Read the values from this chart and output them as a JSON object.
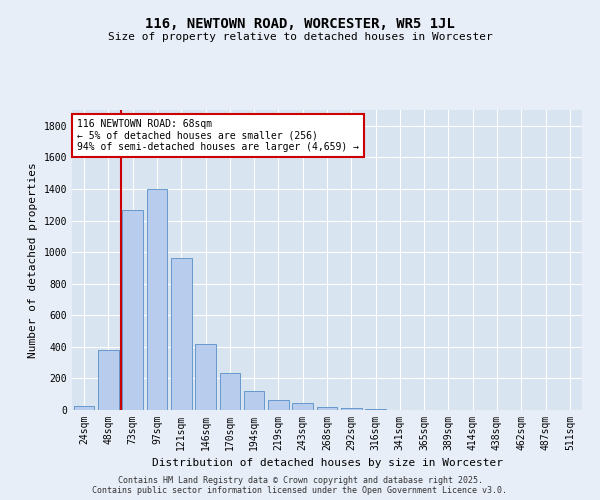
{
  "title": "116, NEWTOWN ROAD, WORCESTER, WR5 1JL",
  "subtitle": "Size of property relative to detached houses in Worcester",
  "xlabel": "Distribution of detached houses by size in Worcester",
  "ylabel": "Number of detached properties",
  "categories": [
    "24sqm",
    "48sqm",
    "73sqm",
    "97sqm",
    "121sqm",
    "146sqm",
    "170sqm",
    "194sqm",
    "219sqm",
    "243sqm",
    "268sqm",
    "292sqm",
    "316sqm",
    "341sqm",
    "365sqm",
    "389sqm",
    "414sqm",
    "438sqm",
    "462sqm",
    "487sqm",
    "511sqm"
  ],
  "values": [
    25,
    380,
    1265,
    1400,
    960,
    415,
    235,
    120,
    65,
    42,
    18,
    10,
    5,
    3,
    2,
    1,
    0,
    0,
    0,
    0,
    0
  ],
  "bar_color": "#b8ccee",
  "bar_edge_color": "#6699cc",
  "annotation_text_line1": "116 NEWTOWN ROAD: 68sqm",
  "annotation_text_line2": "← 5% of detached houses are smaller (256)",
  "annotation_text_line3": "94% of semi-detached houses are larger (4,659) →",
  "annotation_box_facecolor": "#ffffff",
  "annotation_box_edgecolor": "#cc0000",
  "vline_color": "#cc0000",
  "footer_line1": "Contains HM Land Registry data © Crown copyright and database right 2025.",
  "footer_line2": "Contains public sector information licensed under the Open Government Licence v3.0.",
  "background_color": "#e8eef8",
  "plot_background_color": "#d8e4f0",
  "grid_color": "#ffffff",
  "ylim": [
    0,
    1900
  ],
  "yticks": [
    0,
    200,
    400,
    600,
    800,
    1000,
    1200,
    1400,
    1600,
    1800
  ],
  "title_fontsize": 10,
  "subtitle_fontsize": 8,
  "ylabel_fontsize": 8,
  "xlabel_fontsize": 8,
  "tick_fontsize": 7,
  "footer_fontsize": 6
}
